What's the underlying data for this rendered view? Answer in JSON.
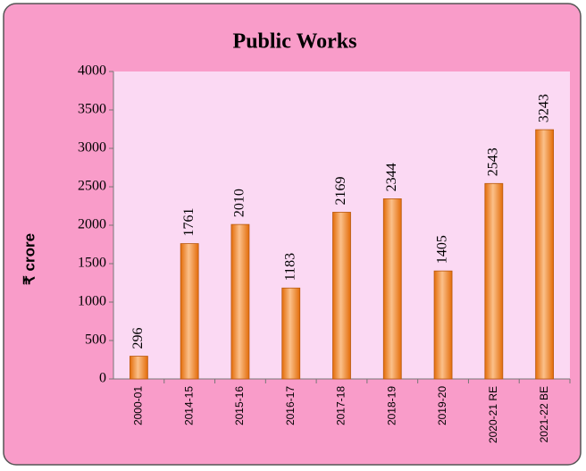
{
  "chart_data": {
    "type": "bar",
    "title": "Public Works",
    "y_label": "₹ crore",
    "categories": [
      "2000-01",
      "2014-15",
      "2015-16",
      "2016-17",
      "2017-18",
      "2018-19",
      "2019-20",
      "2020-21 RE",
      "2021-22 BE"
    ],
    "values": [
      296,
      1761,
      2010,
      1183,
      2169,
      2344,
      1405,
      2543,
      3243
    ],
    "color": "#e36c09",
    "ylim": [
      0,
      4000
    ],
    "yticks": [
      0,
      500,
      1000,
      1500,
      2000,
      2500,
      3000,
      3500,
      4000
    ],
    "grid": false
  }
}
